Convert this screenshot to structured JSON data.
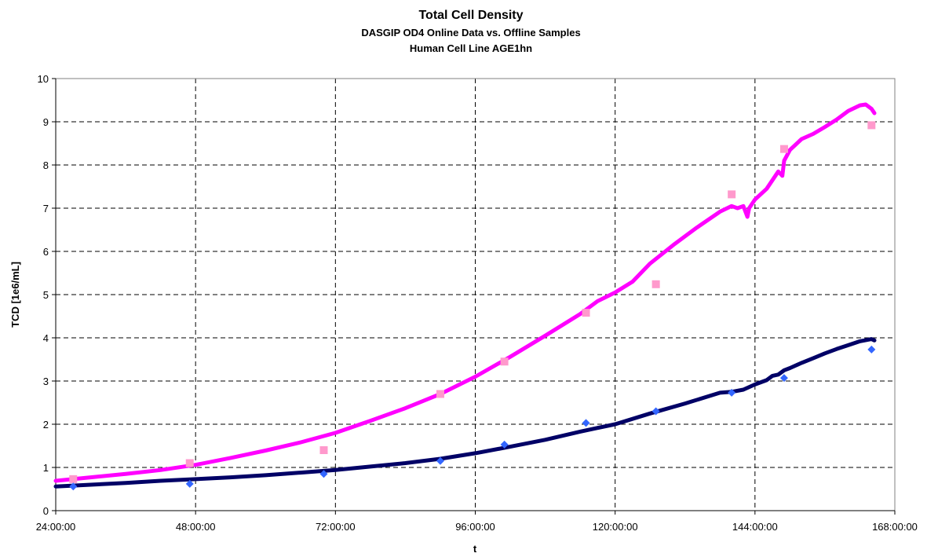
{
  "chart_data": {
    "type": "line",
    "title": "Total Cell Density",
    "subtitle_lines": [
      "DASGIP OD4 Online Data vs. Offline Samples",
      "Human Cell Line AGE1hn"
    ],
    "xlabel": "t",
    "ylabel": "TCD [1e6/mL]",
    "xlim": [
      24,
      168
    ],
    "ylim": [
      0,
      10
    ],
    "x_ticks": [
      24,
      48,
      72,
      96,
      120,
      144,
      168
    ],
    "x_tick_labels": [
      "24:00:00",
      "48:00:00",
      "72:00:00",
      "96:00:00",
      "120:00:00",
      "144:00:00",
      "168:00:00"
    ],
    "y_ticks": [
      0,
      1,
      2,
      3,
      4,
      5,
      6,
      7,
      8,
      9,
      10
    ],
    "y_tick_labels": [
      "0",
      "1",
      "2",
      "3",
      "4",
      "5",
      "6",
      "7",
      "8",
      "9",
      "10"
    ],
    "grid": true,
    "legend": "none",
    "series": [
      {
        "kind": "line",
        "color": "#ff00ff",
        "x": [
          24,
          30,
          36,
          42,
          48,
          54,
          60,
          66,
          72,
          78,
          84,
          90,
          96,
          102,
          108,
          114,
          117,
          120,
          123,
          126,
          130,
          134,
          138,
          140,
          141,
          142,
          142.7,
          143,
          144,
          146,
          148,
          148.7,
          149,
          150,
          152,
          154,
          156,
          158,
          160,
          162,
          163,
          164,
          164.5
        ],
        "y": [
          0.69,
          0.77,
          0.85,
          0.94,
          1.06,
          1.22,
          1.39,
          1.58,
          1.8,
          2.08,
          2.37,
          2.7,
          3.1,
          3.56,
          4.05,
          4.55,
          4.85,
          5.05,
          5.3,
          5.72,
          6.15,
          6.55,
          6.92,
          7.05,
          7.0,
          7.05,
          6.8,
          7.0,
          7.2,
          7.45,
          7.85,
          7.75,
          8.1,
          8.35,
          8.6,
          8.72,
          8.88,
          9.05,
          9.25,
          9.38,
          9.4,
          9.3,
          9.2
        ]
      },
      {
        "kind": "line",
        "color": "#000066",
        "x": [
          24,
          30,
          36,
          42,
          48,
          54,
          60,
          66,
          72,
          78,
          84,
          90,
          96,
          102,
          108,
          114,
          120,
          126,
          132,
          138,
          140,
          142,
          144,
          146,
          147,
          148,
          149,
          150,
          152,
          154,
          156,
          158,
          160,
          162,
          164,
          164.5
        ],
        "y": [
          0.56,
          0.6,
          0.64,
          0.69,
          0.73,
          0.77,
          0.82,
          0.88,
          0.94,
          1.02,
          1.1,
          1.2,
          1.33,
          1.48,
          1.64,
          1.83,
          2.0,
          2.25,
          2.48,
          2.73,
          2.75,
          2.8,
          2.92,
          3.02,
          3.12,
          3.15,
          3.25,
          3.3,
          3.42,
          3.53,
          3.64,
          3.74,
          3.83,
          3.92,
          3.97,
          3.94
        ]
      },
      {
        "kind": "scatter",
        "marker": "square",
        "color": "#ff99cc",
        "x": [
          27,
          47,
          70,
          90,
          101,
          115,
          127,
          140,
          149,
          164
        ],
        "y": [
          0.73,
          1.1,
          1.4,
          2.7,
          3.45,
          4.58,
          5.24,
          7.32,
          8.37,
          8.92
        ]
      },
      {
        "kind": "scatter",
        "marker": "diamond",
        "color": "#3366ff",
        "x": [
          27,
          47,
          70,
          90,
          101,
          115,
          127,
          140,
          149,
          164
        ],
        "y": [
          0.56,
          0.62,
          0.85,
          1.15,
          1.53,
          2.03,
          2.3,
          2.73,
          3.07,
          3.73
        ]
      }
    ]
  }
}
